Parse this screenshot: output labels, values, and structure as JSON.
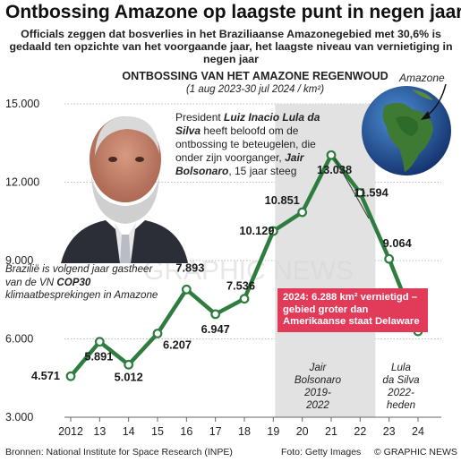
{
  "title": "Ontbossing Amazone op laagste punt in negen jaar",
  "subtitle": "Officials zeggen dat bosverlies in het Braziliaanse Amazonegebied met 30,6% is gedaald ten opzichte van het voorgaande jaar, het laagste niveau van vernietiging in negen jaar",
  "president_note": {
    "prefix": "President ",
    "lula": "Luiz Inacio Lula da Silva",
    "middle": " heeft beloofd om de ontbossing te beteugelen, die onder zijn voorganger, ",
    "bolsonaro": "Jair Bolsonaro",
    "suffix": ", 15 jaar steeg"
  },
  "cop_note": {
    "prefix": "Brazilië is volgend jaar gastheer van de VN ",
    "cop": "COP30",
    "suffix": " klimaatbesprekingen in Amazone"
  },
  "callout": "2024: 6.288 km² vernietigd – gebied groter dan Amerikaanse staat Delaware",
  "globe_label": "Amazone",
  "era_bolsonaro": [
    "Jair",
    "Bolsonaro",
    "2019-",
    "2022"
  ],
  "era_lula": [
    "Lula",
    "da Silva",
    "2022-",
    "heden"
  ],
  "source": "Bronnen: National Institute for Space Research (INPE)",
  "photo_credit": "Foto: Getty Images",
  "credit": "© GRAPHIC NEWS",
  "watermark": "GRAPHIC NEWS",
  "colors": {
    "line": "#2e7d3e",
    "callout": "#e23b5a",
    "shade": "#e2e2e2"
  },
  "chart_data": {
    "type": "line",
    "title": "ONTBOSSING VAN HET AMAZONE REGENWOUD",
    "subtitle": "(1 aug 2023-30 jul 2024 / km²)",
    "x": [
      2012,
      2013,
      2014,
      2015,
      2016,
      2017,
      2018,
      2019,
      2020,
      2021,
      2022,
      2023,
      2024
    ],
    "x_tick_labels": [
      "2012",
      "13",
      "14",
      "15",
      "16",
      "17",
      "18",
      "19",
      "20",
      "21",
      "22",
      "23",
      "24"
    ],
    "values": [
      4571,
      5891,
      5012,
      6207,
      7893,
      6947,
      7536,
      10129,
      10851,
      13038,
      11594,
      9064,
      6288
    ],
    "value_labels": [
      "4.571",
      "5.891",
      "5.012",
      "6.207",
      "7.893",
      "6.947",
      "7.536",
      "10.129",
      "10.851",
      "13.038",
      "11.594",
      "9.064",
      ""
    ],
    "y_ticks": [
      3000,
      6000,
      9000,
      12000,
      15000
    ],
    "y_tick_labels": [
      "3.000",
      "6.000",
      "9.000",
      "12.000",
      "15.000"
    ],
    "ylim": [
      3000,
      15000
    ],
    "grid": true,
    "shaded_period": [
      2019,
      2022
    ]
  }
}
